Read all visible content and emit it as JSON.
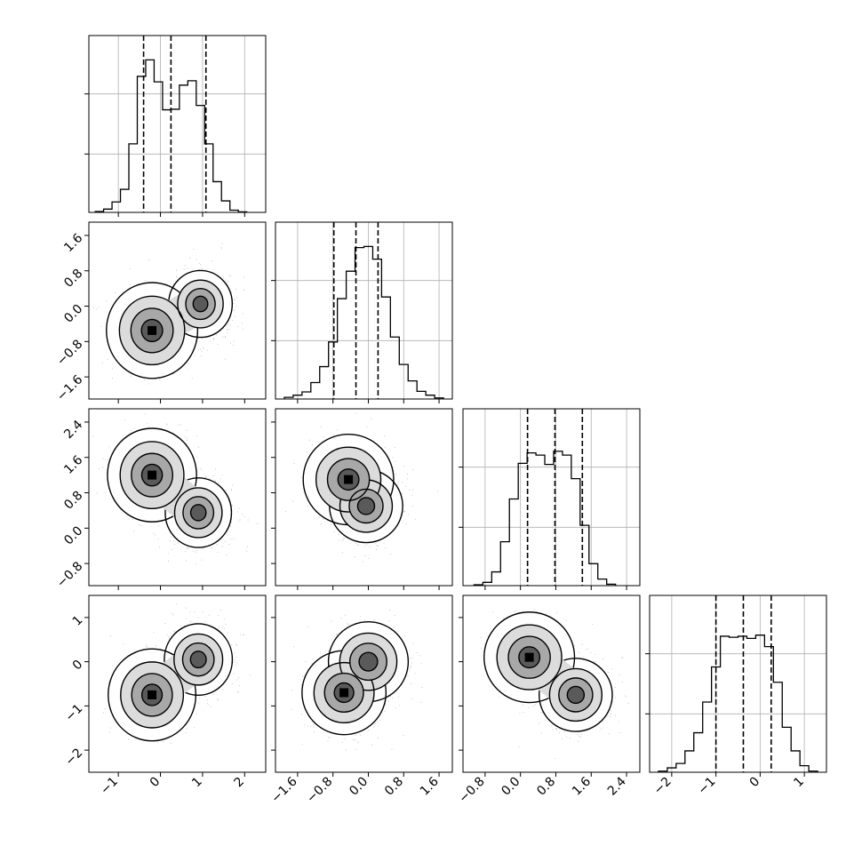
{
  "chart_data": {
    "type": "corner",
    "title": "",
    "grid": true,
    "colors": {
      "axes": "#000000",
      "grid": "#b0b0b0",
      "contour": "#000000",
      "points": "#808080"
    },
    "parameters": [
      {
        "index": 0,
        "xlim": [
          -1.7,
          2.5
        ],
        "ticks": [
          "−1",
          "0",
          "1",
          "2"
        ],
        "tick_values": [
          -1,
          0,
          1,
          2
        ],
        "quantiles": [
          -0.4,
          0.25,
          1.08
        ]
      },
      {
        "index": 1,
        "xlim": [
          -2.1,
          1.9
        ],
        "ticks": [
          "−1.6",
          "−0.8",
          "0.0",
          "0.8",
          "1.6"
        ],
        "tick_values": [
          -1.6,
          -0.8,
          0.0,
          0.8,
          1.6
        ],
        "quantiles": [
          -0.78,
          -0.28,
          0.22
        ]
      },
      {
        "index": 2,
        "xlim": [
          -1.3,
          2.7
        ],
        "ticks": [
          "−0.8",
          "0.0",
          "0.8",
          "1.6",
          "2.4"
        ],
        "tick_values": [
          -0.8,
          0.0,
          0.8,
          1.6,
          2.4
        ],
        "quantiles": [
          0.16,
          0.78,
          1.4
        ]
      },
      {
        "index": 3,
        "xlim": [
          -2.5,
          1.5
        ],
        "ticks": [
          "−2",
          "−1",
          "0",
          "1"
        ],
        "tick_values": [
          -2,
          -1,
          0,
          1
        ],
        "quantiles": [
          -1.0,
          -0.38,
          0.25
        ]
      }
    ],
    "histograms": [
      {
        "param": 0,
        "bin_start": -1.55,
        "bin_width": 0.2,
        "ymax": 2900,
        "counts": [
          15,
          60,
          190,
          420,
          1250,
          2480,
          2780,
          2380,
          1870,
          1880,
          2320,
          2400,
          1950,
          1250,
          560,
          210,
          40,
          10
        ]
      },
      {
        "param": 1,
        "bin_start": -1.9,
        "bin_width": 0.2,
        "ymax": 2900,
        "counts": [
          30,
          70,
          130,
          300,
          590,
          1040,
          1830,
          2330,
          2760,
          2780,
          2550,
          1860,
          1130,
          630,
          330,
          140,
          70,
          20
        ]
      },
      {
        "param": 2,
        "bin_start": -1.05,
        "bin_width": 0.2,
        "ymax": 2900,
        "counts": [
          15,
          60,
          250,
          800,
          1580,
          2230,
          2420,
          2380,
          2210,
          2450,
          2380,
          1950,
          1100,
          400,
          120,
          25
        ]
      },
      {
        "param": 3,
        "bin_start": -2.3,
        "bin_width": 0.2,
        "ymax": 2900,
        "counts": [
          20,
          80,
          160,
          390,
          720,
          1280,
          1920,
          2480,
          2460,
          2480,
          2440,
          2500,
          2290,
          1640,
          820,
          390,
          120,
          20
        ]
      }
    ],
    "joint": [
      {
        "row": 1,
        "col": 0,
        "modes": [
          {
            "x": -0.2,
            "y": -0.55,
            "w": 0.65
          },
          {
            "x": 0.95,
            "y": 0.05,
            "w": 0.35
          }
        ]
      },
      {
        "row": 2,
        "col": 0,
        "modes": [
          {
            "x": -0.2,
            "y": 1.2,
            "w": 0.62
          },
          {
            "x": 0.9,
            "y": 0.35,
            "w": 0.38
          }
        ]
      },
      {
        "row": 2,
        "col": 1,
        "modes": [
          {
            "x": -0.45,
            "y": 1.1,
            "w": 0.58
          },
          {
            "x": -0.05,
            "y": 0.5,
            "w": 0.42
          }
        ]
      },
      {
        "row": 3,
        "col": 0,
        "modes": [
          {
            "x": -0.2,
            "y": -0.75,
            "w": 0.6
          },
          {
            "x": 0.9,
            "y": 0.05,
            "w": 0.4
          }
        ]
      },
      {
        "row": 3,
        "col": 1,
        "modes": [
          {
            "x": -0.55,
            "y": -0.7,
            "w": 0.5
          },
          {
            "x": 0.0,
            "y": 0.0,
            "w": 0.5
          }
        ]
      },
      {
        "row": 3,
        "col": 2,
        "modes": [
          {
            "x": 0.2,
            "y": 0.1,
            "w": 0.58
          },
          {
            "x": 1.25,
            "y": -0.75,
            "w": 0.42
          }
        ]
      }
    ],
    "y_ticks": [
      {
        "row": 1,
        "ticks": [
          "1.6",
          "0.8",
          "0.0",
          "−0.8",
          "−1.6"
        ],
        "tick_values": [
          1.6,
          0.8,
          0.0,
          -0.8,
          -1.6
        ]
      },
      {
        "row": 2,
        "ticks": [
          "2.4",
          "1.6",
          "0.8",
          "0.0",
          "−0.8"
        ],
        "tick_values": [
          2.4,
          1.6,
          0.8,
          0.0,
          -0.8
        ]
      },
      {
        "row": 3,
        "ticks": [
          "1",
          "0",
          "−1",
          "−2"
        ],
        "tick_values": [
          1,
          0,
          -1,
          -2
        ]
      }
    ]
  }
}
